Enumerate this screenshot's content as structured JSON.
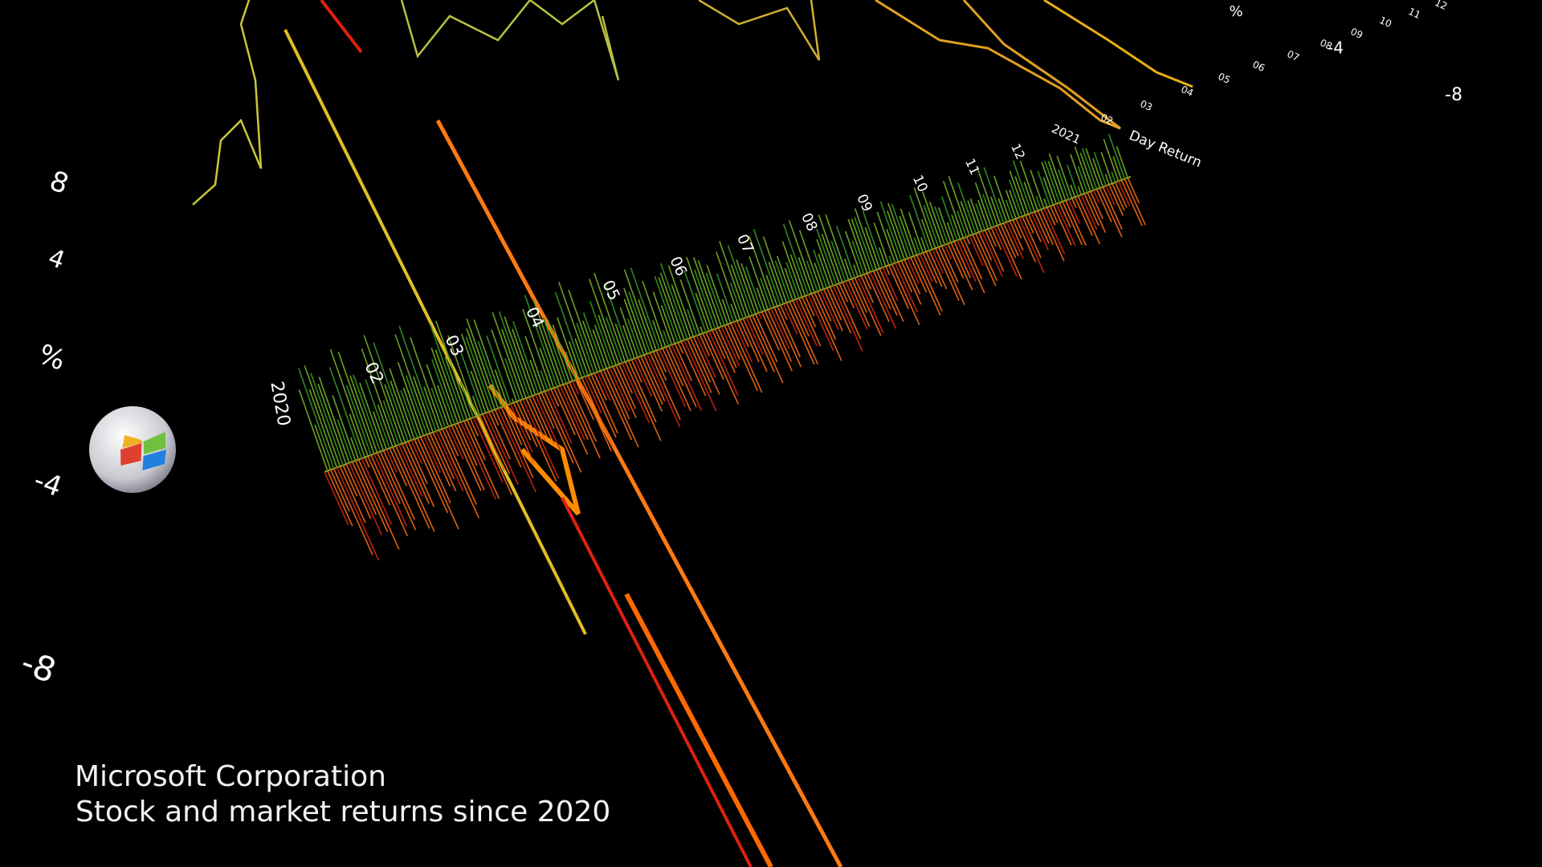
{
  "title": "Microsoft Corporation",
  "subtitle": "Stock and market returns since 2020",
  "front_axis": {
    "ticks": [
      "8",
      "4",
      "%",
      "-4",
      "-8"
    ]
  },
  "months": [
    "2020",
    "02",
    "03",
    "04",
    "05",
    "06",
    "07",
    "08",
    "09",
    "10",
    "11",
    "12",
    "2021"
  ],
  "axis_label": "Day Return",
  "back_axis": {
    "ticks": [
      "%",
      "-4",
      "-8"
    ]
  },
  "back_months": [
    "02",
    "03",
    "04",
    "05",
    "06",
    "07",
    "08",
    "09",
    "10",
    "11",
    "12"
  ]
}
